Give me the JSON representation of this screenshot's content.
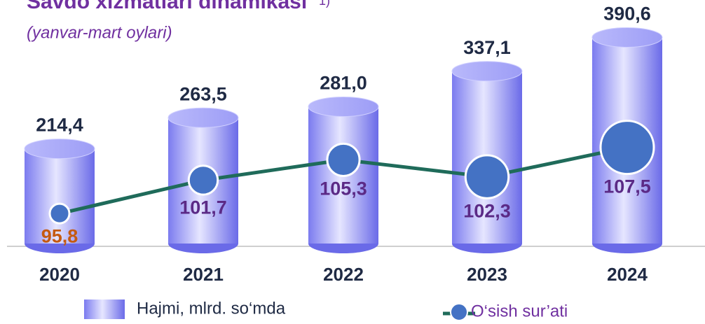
{
  "chart_data": {
    "type": "bar",
    "title": "Savdo xizmatlari dinamikasi",
    "title_note": "1)",
    "subtitle": "(yanvar-mart oylari)",
    "categories": [
      "2020",
      "2021",
      "2022",
      "2023",
      "2024"
    ],
    "ylim": [
      60,
      400
    ],
    "y2lim": [
      90,
      128
    ],
    "series": [
      {
        "name": "Hajmi, mlrd. so‘mda",
        "type": "bar",
        "color": "#8c8cf5",
        "values": [
          214.4,
          263.5,
          281.0,
          337.1,
          390.6
        ],
        "value_labels": [
          "214,4",
          "263,5",
          "281,0",
          "337,1",
          "390,6"
        ]
      },
      {
        "name": "O‘sish sur’ati",
        "type": "line",
        "axis": "y2",
        "color": "#1f6b5a",
        "marker_color": "#4472c4",
        "values": [
          95.8,
          101.7,
          105.3,
          102.3,
          107.5
        ],
        "value_labels": [
          "95,8",
          "101,7",
          "105,3",
          "102,3",
          "107,5"
        ],
        "label_colors": [
          "#c55a11",
          "#5b2a86",
          "#5b2a86",
          "#5b2a86",
          "#5b2a86"
        ]
      }
    ]
  }
}
